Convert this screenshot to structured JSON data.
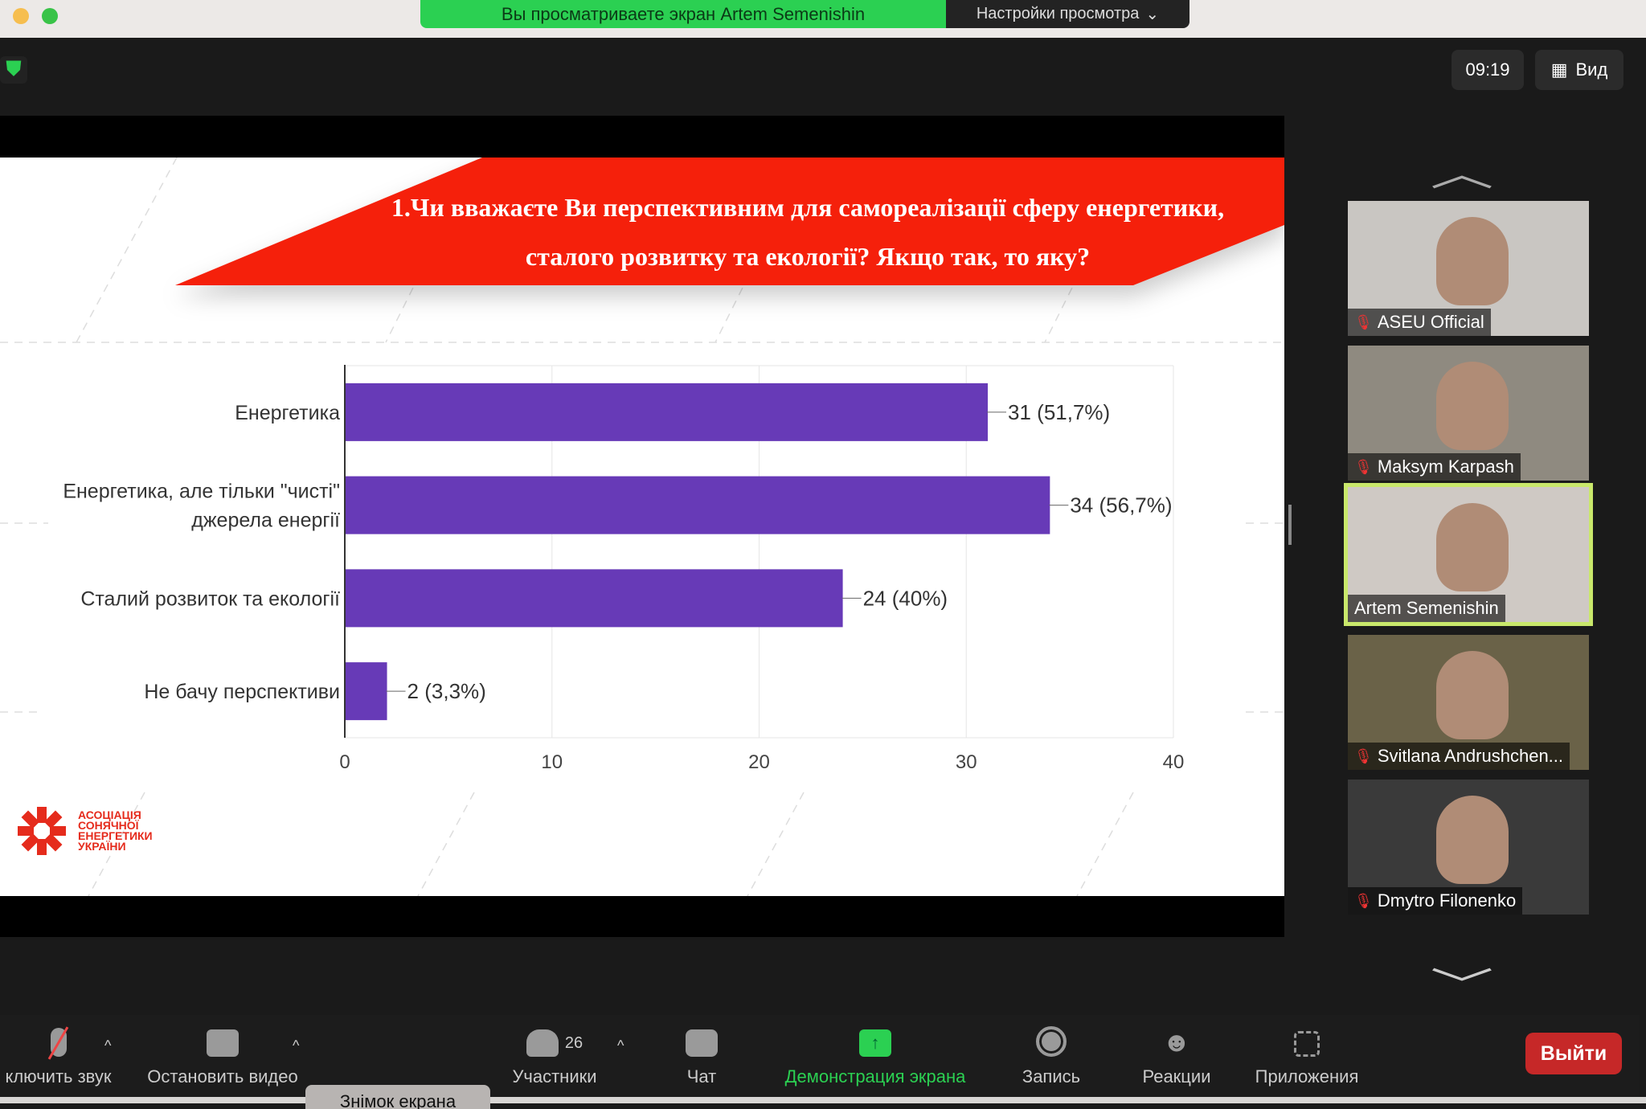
{
  "banner": {
    "viewing": "Вы просматриваете экран Artem Semenishin",
    "settings": "Настройки просмотра"
  },
  "header": {
    "time": "09:19",
    "view": "Вид"
  },
  "slide": {
    "question": "1.Чи вважаєте Ви перспективним для самореалізації сферу енергетики, сталого розвитку та екології? Якщо так, то яку?",
    "logo": "АСОЦІАЦІЯ СОНЯЧНОЇ ЕНЕРГЕТИКИ УКРАЇНИ"
  },
  "chart_data": {
    "type": "bar",
    "orientation": "horizontal",
    "categories": [
      "Енергетика",
      "Енергетика, але тільки \"чисті\" джерела енергії",
      "Сталий розвиток та екології",
      "Не бачу перспективи"
    ],
    "category_lines": [
      [
        "Енергетика"
      ],
      [
        "Енергетика, але тільки \"чисті\"",
        "джерела енергії"
      ],
      [
        "Сталий розвиток та екології"
      ],
      [
        "Не бачу перспективи"
      ]
    ],
    "values": [
      31,
      34,
      24,
      2
    ],
    "labels": [
      "31 (51,7%)",
      "34 (56,7%)",
      "24 (40%)",
      "2 (3,3%)"
    ],
    "xlim": [
      0,
      40
    ],
    "ticks": [
      "0",
      "10",
      "20",
      "30",
      "40"
    ],
    "grid": true,
    "color": "#673ab7"
  },
  "participants": [
    {
      "name": "ASEU Official",
      "muted": true
    },
    {
      "name": "Maksym Karpash",
      "muted": true
    },
    {
      "name": "Artem Semenishin",
      "muted": false,
      "active": true
    },
    {
      "name": "Svitlana Andrushchen...",
      "muted": true
    },
    {
      "name": "Dmytro Filonenko",
      "muted": true
    }
  ],
  "toolbar": {
    "mute": "ключить звук",
    "video": "Остановить видео",
    "participants": "Участники",
    "participants_count": "26",
    "chat": "Чат",
    "share": "Демонстрация экрана",
    "record": "Запись",
    "reactions": "Реакции",
    "apps": "Приложения",
    "leave": "Выйти",
    "tooltip": "Знімок екрана"
  },
  "colors": {
    "accent_green": "#2bd052",
    "leave_red": "#c62828",
    "slide_red": "#f5200b",
    "active_border": "#c9e86b"
  }
}
